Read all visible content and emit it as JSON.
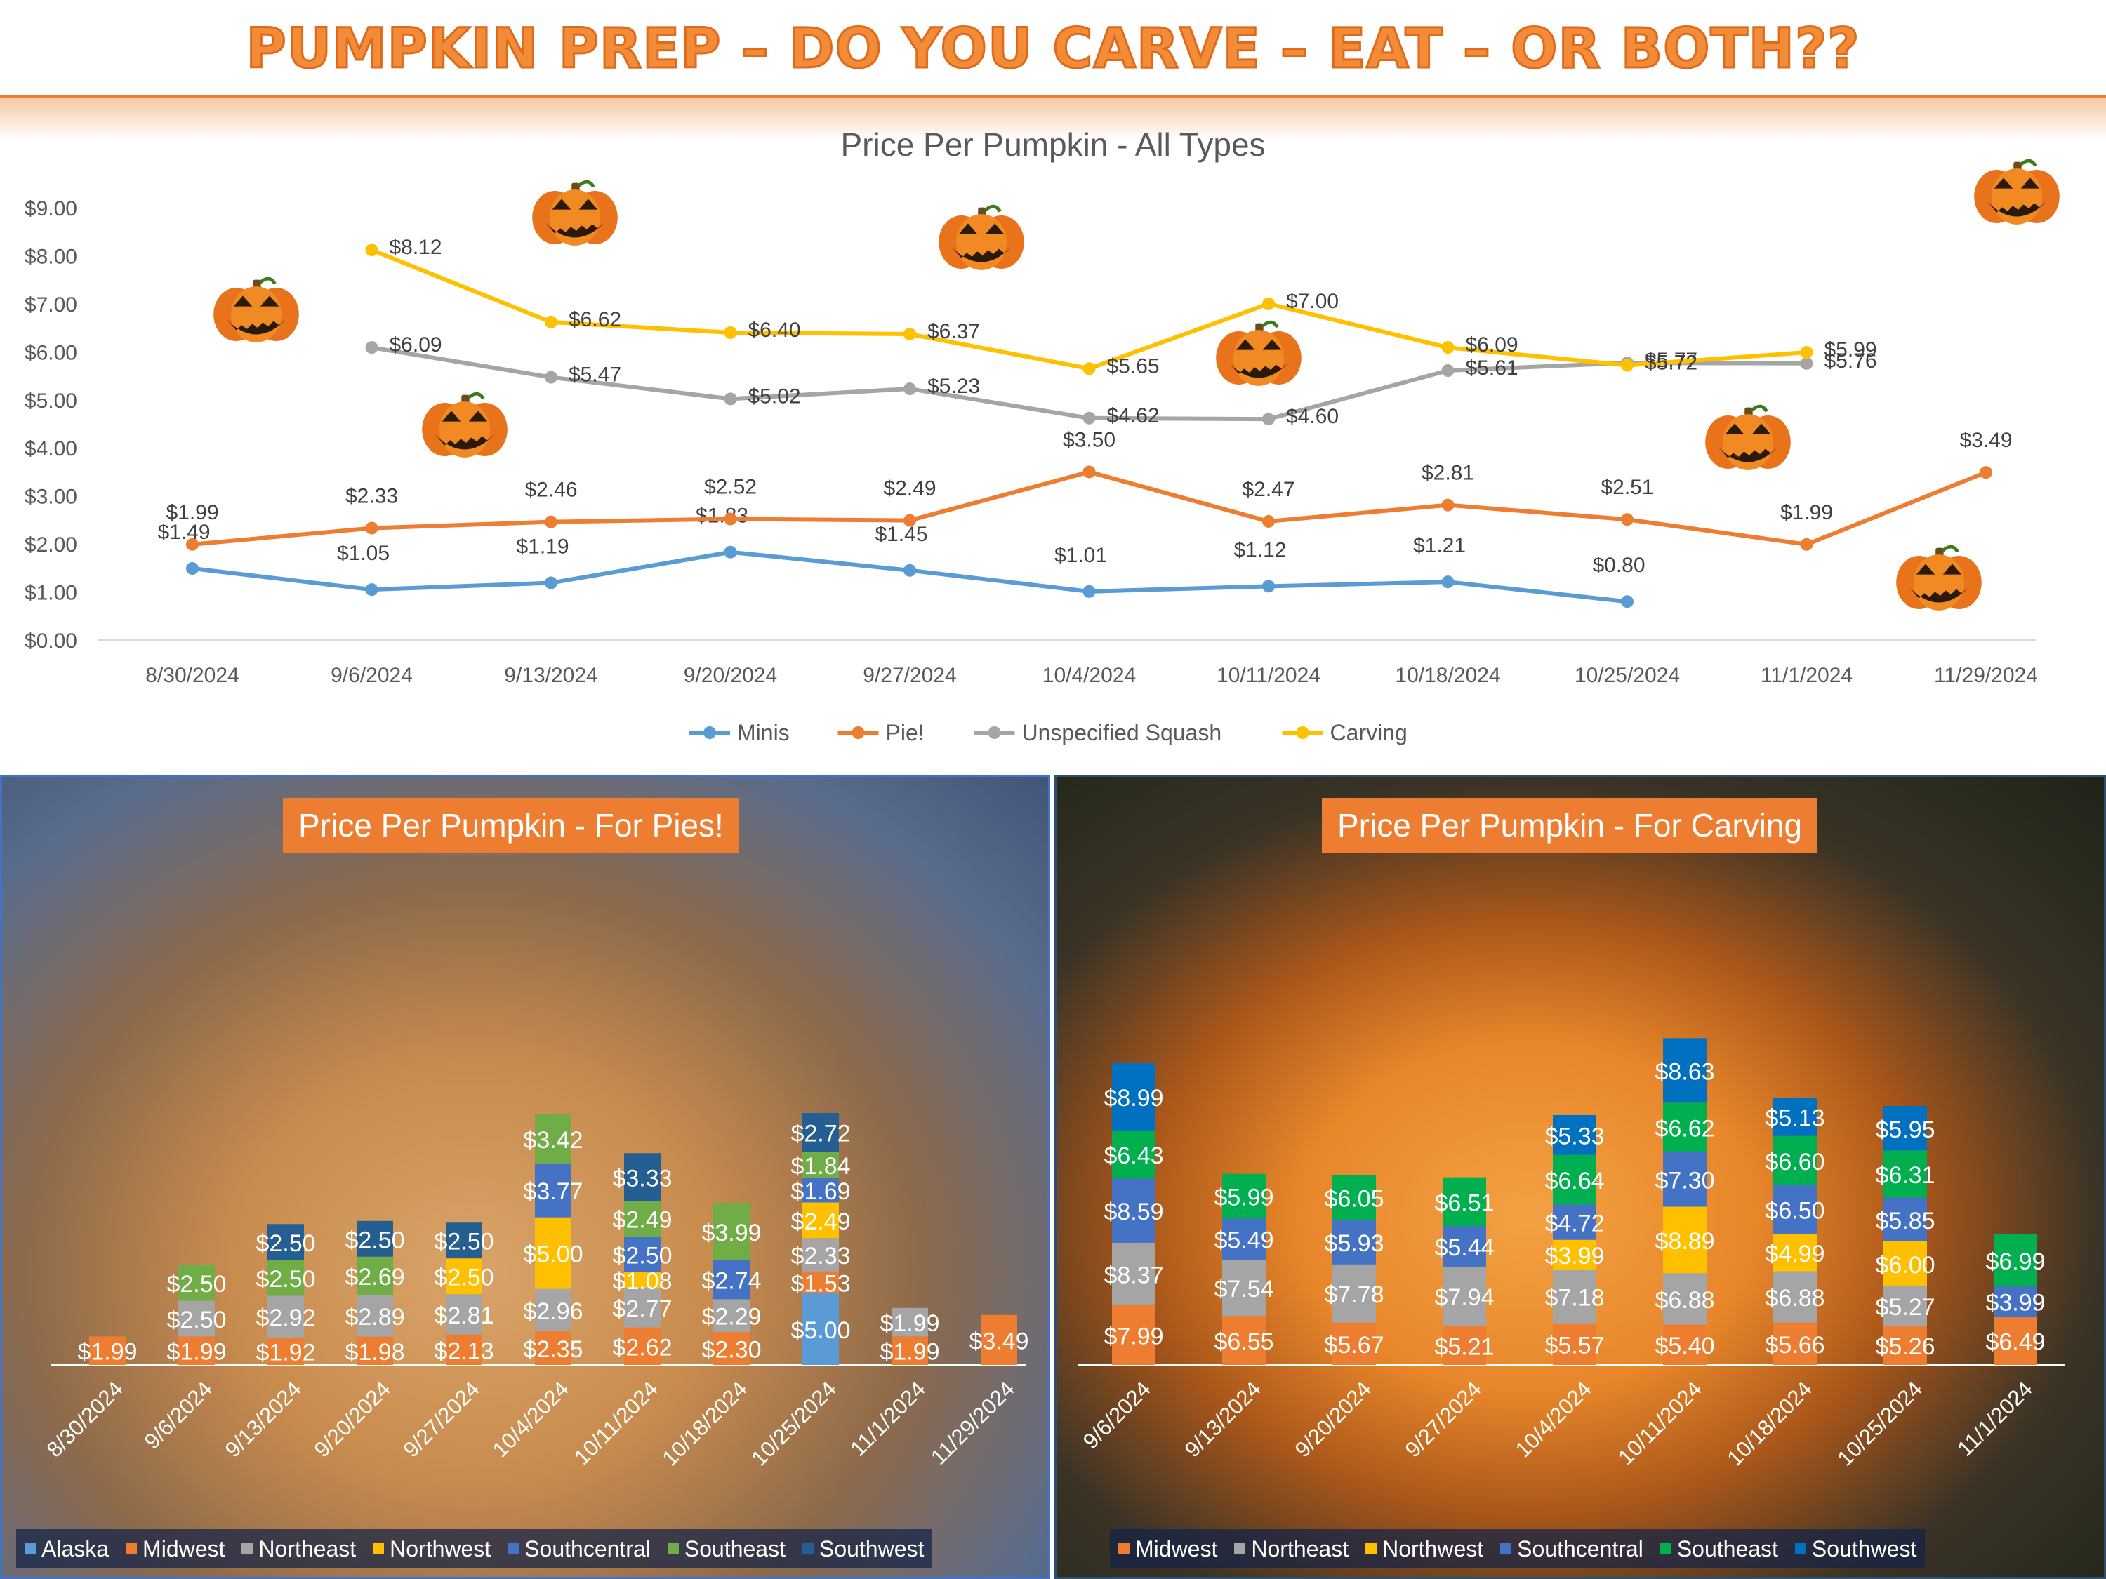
{
  "page": {
    "title": "PUMPKIN PREP – DO YOU CARVE – EAT – OR BOTH??",
    "colors": {
      "accent": "#ed7d31",
      "minis": "#5b9bd5",
      "pie": "#ed7d31",
      "squash": "#a5a5a5",
      "carving": "#ffc000"
    },
    "decor_icons": [
      "jack-o-lantern-icon",
      "pie-photo-background",
      "carved-pumpkin-photo-background"
    ]
  },
  "chart_data": [
    {
      "type": "line",
      "title": "Price Per Pumpkin - All Types",
      "x": [
        "8/30/2024",
        "9/6/2024",
        "9/13/2024",
        "9/20/2024",
        "9/27/2024",
        "10/4/2024",
        "10/11/2024",
        "10/18/2024",
        "10/25/2024",
        "11/1/2024",
        "11/29/2024"
      ],
      "yticks": [
        "$0.00",
        "$1.00",
        "$2.00",
        "$3.00",
        "$4.00",
        "$5.00",
        "$6.00",
        "$7.00",
        "$8.00",
        "$9.00"
      ],
      "ylim": [
        0,
        9
      ],
      "grid": false,
      "legend": "bottom",
      "series": [
        {
          "name": "Minis",
          "color": "#5b9bd5",
          "values": [
            1.49,
            1.05,
            1.19,
            1.83,
            1.45,
            1.01,
            1.12,
            1.21,
            0.8,
            null,
            null
          ],
          "labels": [
            "$1.49",
            "$1.05",
            "$1.19",
            "$1.83",
            "$1.45",
            "$1.01",
            "$1.12",
            "$1.21",
            "$0.80",
            null,
            null
          ]
        },
        {
          "name": "Pie!",
          "color": "#ed7d31",
          "values": [
            1.99,
            2.33,
            2.46,
            2.52,
            2.49,
            3.5,
            2.47,
            2.81,
            2.51,
            1.99,
            3.49
          ],
          "labels": [
            "$1.99",
            "$2.33",
            "$2.46",
            "$2.52",
            "$2.49",
            "$3.50",
            "$2.47",
            "$2.81",
            "$2.51",
            "$1.99",
            "$3.49"
          ]
        },
        {
          "name": "Unspecified Squash",
          "color": "#a5a5a5",
          "values": [
            null,
            6.09,
            5.47,
            5.02,
            5.23,
            4.62,
            4.6,
            5.61,
            5.77,
            5.76,
            null
          ],
          "labels": [
            null,
            "$6.09",
            "$5.47",
            "$5.02",
            "$5.23",
            "$4.62",
            "$4.60",
            "$5.61",
            "$5.77",
            "$5.76",
            null
          ]
        },
        {
          "name": "Carving",
          "color": "#ffc000",
          "values": [
            null,
            8.12,
            6.62,
            6.4,
            6.37,
            5.65,
            7.0,
            6.09,
            5.72,
            5.99,
            null
          ],
          "labels": [
            null,
            "$8.12",
            "$6.62",
            "$6.40",
            "$6.37",
            "$5.65",
            "$7.00",
            "$6.09",
            "$5.72",
            "$5.99",
            null
          ]
        }
      ]
    },
    {
      "type": "bar",
      "stacked": true,
      "title": "Price Per Pumpkin - For Pies!",
      "categories": [
        "8/30/2024",
        "9/6/2024",
        "9/13/2024",
        "9/20/2024",
        "9/27/2024",
        "10/4/2024",
        "10/11/2024",
        "10/18/2024",
        "10/25/2024",
        "11/1/2024",
        "11/29/2024"
      ],
      "legend": "bottom",
      "series": [
        {
          "name": "Alaska",
          "color": "#5b9bd5",
          "values": [
            null,
            null,
            null,
            null,
            null,
            null,
            null,
            null,
            5.0,
            null,
            null
          ],
          "labels": [
            null,
            null,
            null,
            null,
            null,
            null,
            null,
            null,
            "$5.00",
            null,
            null
          ]
        },
        {
          "name": "Midwest",
          "color": "#ed7d31",
          "values": [
            1.99,
            1.99,
            1.92,
            1.98,
            2.13,
            2.35,
            2.62,
            2.3,
            1.53,
            1.99,
            3.49
          ],
          "labels": [
            "$1.99",
            "$1.99",
            "$1.92",
            "$1.98",
            "$2.13",
            "$2.35",
            "$2.62",
            "$2.30",
            "$1.53",
            "$1.99",
            "$3.49"
          ]
        },
        {
          "name": "Northeast",
          "color": "#a5a5a5",
          "values": [
            null,
            2.5,
            2.92,
            2.89,
            2.81,
            2.96,
            2.77,
            2.29,
            2.33,
            1.99,
            null
          ],
          "labels": [
            null,
            "$2.50",
            "$2.92",
            "$2.89",
            "$2.81",
            "$2.96",
            "$2.77",
            "$2.29",
            "$2.33",
            "$1.99",
            null
          ]
        },
        {
          "name": "Northwest",
          "color": "#ffc000",
          "values": [
            null,
            null,
            null,
            null,
            2.5,
            5.0,
            1.08,
            null,
            2.49,
            null,
            null
          ],
          "labels": [
            null,
            null,
            null,
            null,
            "$2.50",
            "$5.00",
            "$1.08",
            null,
            "$2.49",
            null,
            null
          ]
        },
        {
          "name": "Southcentral",
          "color": "#4472c4",
          "values": [
            null,
            null,
            null,
            null,
            null,
            3.77,
            2.5,
            2.74,
            1.69,
            null,
            null
          ],
          "labels": [
            null,
            null,
            null,
            null,
            null,
            "$3.77",
            "$2.50",
            "$2.74",
            "$1.69",
            null,
            null
          ]
        },
        {
          "name": "Southeast",
          "color": "#70ad47",
          "values": [
            null,
            2.5,
            2.5,
            2.69,
            null,
            3.42,
            2.49,
            3.99,
            1.84,
            null,
            null
          ],
          "labels": [
            null,
            "$2.50",
            "$2.50",
            "$2.69",
            null,
            "$3.42",
            "$2.49",
            "$3.99",
            "$1.84",
            null,
            null
          ]
        },
        {
          "name": "Southwest",
          "color": "#255e91",
          "values": [
            null,
            null,
            2.5,
            2.5,
            2.5,
            null,
            3.33,
            null,
            2.72,
            null,
            null
          ],
          "labels": [
            null,
            null,
            "$2.50",
            "$2.50",
            "$2.50",
            null,
            "$3.33",
            null,
            "$2.72",
            null,
            null
          ]
        }
      ]
    },
    {
      "type": "bar",
      "stacked": true,
      "title": "Price Per Pumpkin - For Carving",
      "categories": [
        "9/6/2024",
        "9/13/2024",
        "9/20/2024",
        "9/27/2024",
        "10/4/2024",
        "10/11/2024",
        "10/18/2024",
        "10/25/2024",
        "11/1/2024"
      ],
      "legend": "bottom",
      "series": [
        {
          "name": "Midwest",
          "color": "#ed7d31",
          "values": [
            7.99,
            6.55,
            5.67,
            5.21,
            5.57,
            5.4,
            5.66,
            5.26,
            6.49
          ],
          "labels": [
            "$7.99",
            "$6.55",
            "$5.67",
            "$5.21",
            "$5.57",
            "$5.40",
            "$5.66",
            "$5.26",
            "$6.49"
          ]
        },
        {
          "name": "Northeast",
          "color": "#a5a5a5",
          "values": [
            8.37,
            7.54,
            7.78,
            7.94,
            7.18,
            6.88,
            6.88,
            5.27,
            null
          ],
          "labels": [
            "$8.37",
            "$7.54",
            "$7.78",
            "$7.94",
            "$7.18",
            "$6.88",
            "$6.88",
            "$5.27",
            null
          ]
        },
        {
          "name": "Northwest",
          "color": "#ffc000",
          "values": [
            null,
            null,
            null,
            null,
            3.99,
            8.89,
            4.99,
            6.0,
            null
          ],
          "labels": [
            null,
            null,
            null,
            null,
            "$3.99",
            "$8.89",
            "$4.99",
            "$6.00",
            null
          ]
        },
        {
          "name": "Southcentral",
          "color": "#4472c4",
          "values": [
            8.59,
            5.49,
            5.93,
            5.44,
            4.72,
            7.3,
            6.5,
            5.85,
            3.99
          ],
          "labels": [
            "$8.59",
            "$5.49",
            "$5.93",
            "$5.44",
            "$4.72",
            "$7.30",
            "$6.50",
            "$5.85",
            "$3.99"
          ]
        },
        {
          "name": "Southeast",
          "color": "#00b050",
          "values": [
            6.43,
            5.99,
            6.05,
            6.51,
            6.64,
            6.62,
            6.6,
            6.31,
            6.99
          ],
          "labels": [
            "$6.43",
            "$5.99",
            "$6.05",
            "$6.51",
            "$6.64",
            "$6.62",
            "$6.60",
            "$6.31",
            "$6.99"
          ]
        },
        {
          "name": "Southwest",
          "color": "#0070c0",
          "values": [
            8.99,
            null,
            null,
            null,
            5.33,
            8.63,
            5.13,
            5.95,
            null
          ],
          "labels": [
            "$8.99",
            null,
            null,
            null,
            "$5.33",
            "$8.63",
            "$5.13",
            "$5.95",
            null
          ]
        }
      ]
    }
  ]
}
